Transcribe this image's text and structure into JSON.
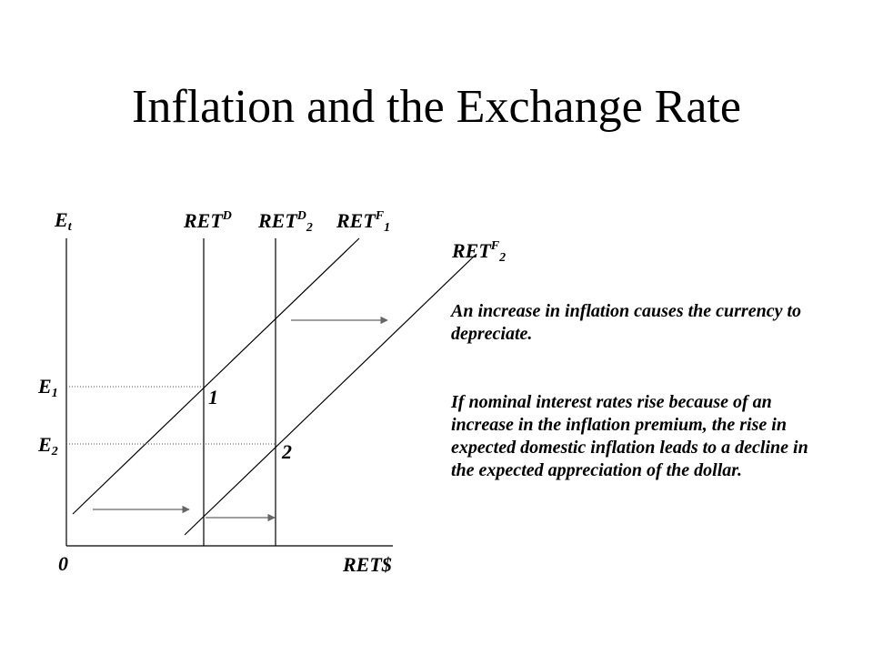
{
  "title": "Inflation and the Exchange Rate",
  "axis_labels": {
    "y_letter": "E",
    "y_sub": "t",
    "origin": "0",
    "x": "RET$"
  },
  "curves": {
    "retd1": {
      "base": "RET",
      "sup": "D",
      "sub": ""
    },
    "retd2": {
      "base": "RET",
      "sup": "D",
      "sub": "2"
    },
    "retf1": {
      "base": "RET",
      "sup": "F",
      "sub": "1"
    },
    "retf2": {
      "base": "RET",
      "sup": "F",
      "sub": "2"
    }
  },
  "equilibria": {
    "e1": {
      "letter": "E",
      "sub": "1"
    },
    "e2": {
      "letter": "E",
      "sub": "2"
    },
    "point1": "1",
    "point2": "2"
  },
  "text": {
    "para1": "An increase in inflation causes the currency to depreciate.",
    "para2": "If nominal interest rates rise because of an increase in the inflation premium, the rise in expected domestic inflation leads to a decline in the expected appreciation of the dollar."
  }
}
